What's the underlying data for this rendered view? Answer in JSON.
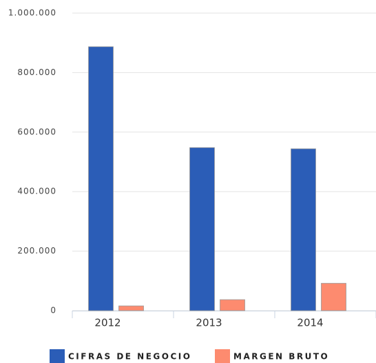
{
  "chart_data": {
    "type": "bar",
    "categories": [
      "2012",
      "2013",
      "2014"
    ],
    "series": [
      {
        "name": "CIFRAS DE NEGOCIO",
        "color": "#2b5db7",
        "values": [
          887000,
          548000,
          544000
        ]
      },
      {
        "name": "MARGEN BRUTO",
        "color": "#fd8b6f",
        "values": [
          16000,
          37000,
          92000
        ]
      }
    ],
    "ylim": [
      0,
      1000000
    ],
    "yticks": [
      0,
      {
        "value": 200000,
        "label": "200.000"
      },
      {
        "value": 400000,
        "label": "400.000"
      },
      {
        "value": 600000,
        "label": "600.000"
      },
      {
        "value": 800000,
        "label": "800.000"
      },
      {
        "value": 1000000,
        "label": "1.000.000"
      }
    ],
    "grid": true,
    "legend": "bottom"
  }
}
